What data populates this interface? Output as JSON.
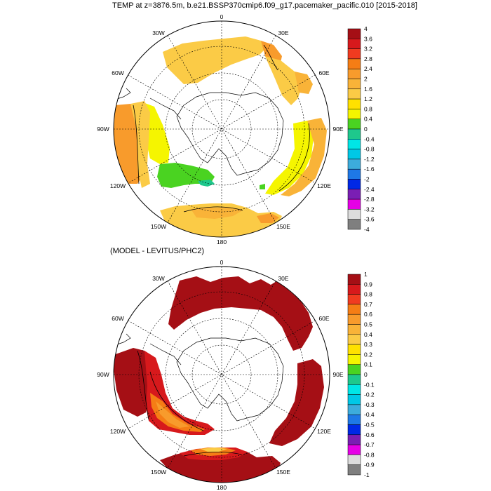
{
  "top_panel": {
    "title": "TEMP at z=3876.5m, b.e21.BSSP370cmip6.f09_g17.pacemaker_pacific.010 [2015-2018]",
    "longitude_labels": [
      "0",
      "30E",
      "60E",
      "90E",
      "120E",
      "150E",
      "180",
      "150W",
      "120W",
      "90W",
      "60W",
      "30W"
    ],
    "colorbar": {
      "labels": [
        "4",
        "3.6",
        "3.2",
        "2.8",
        "2.4",
        "2",
        "1.6",
        "1.2",
        "0.8",
        "0.4",
        "0",
        "-0.4",
        "-0.8",
        "-1.2",
        "-1.6",
        "-2",
        "-2.4",
        "-2.8",
        "-3.2",
        "-3.6",
        "-4"
      ]
    }
  },
  "bottom_panel": {
    "title": "(MODEL - LEVITUS/PHC2)",
    "longitude_labels": [
      "0",
      "30E",
      "60E",
      "90E",
      "120E",
      "150E",
      "180",
      "150W",
      "120W",
      "90W",
      "60W",
      "30W"
    ],
    "colorbar": {
      "labels": [
        "1",
        "0.9",
        "0.8",
        "0.7",
        "0.6",
        "0.5",
        "0.4",
        "0.3",
        "0.2",
        "0.1",
        "0",
        "-0.1",
        "-0.2",
        "-0.3",
        "-0.4",
        "-0.5",
        "-0.6",
        "-0.7",
        "-0.8",
        "-0.9",
        "-1"
      ]
    }
  },
  "colors": {
    "palette": [
      "#a50f15",
      "#d7191c",
      "#f03b20",
      "#f57d15",
      "#f89b2c",
      "#f9b338",
      "#fbcb46",
      "#ffe100",
      "#f5f500",
      "#4ad321",
      "#1ec88c",
      "#00e6e6",
      "#00c8e6",
      "#3cacdc",
      "#1e78e6",
      "#0028e6",
      "#7a1eb4",
      "#e600e6",
      "#dcdcdc",
      "#7f7f7f"
    ],
    "land": "#ffffff",
    "ocean_nodata": "#ffffff"
  }
}
